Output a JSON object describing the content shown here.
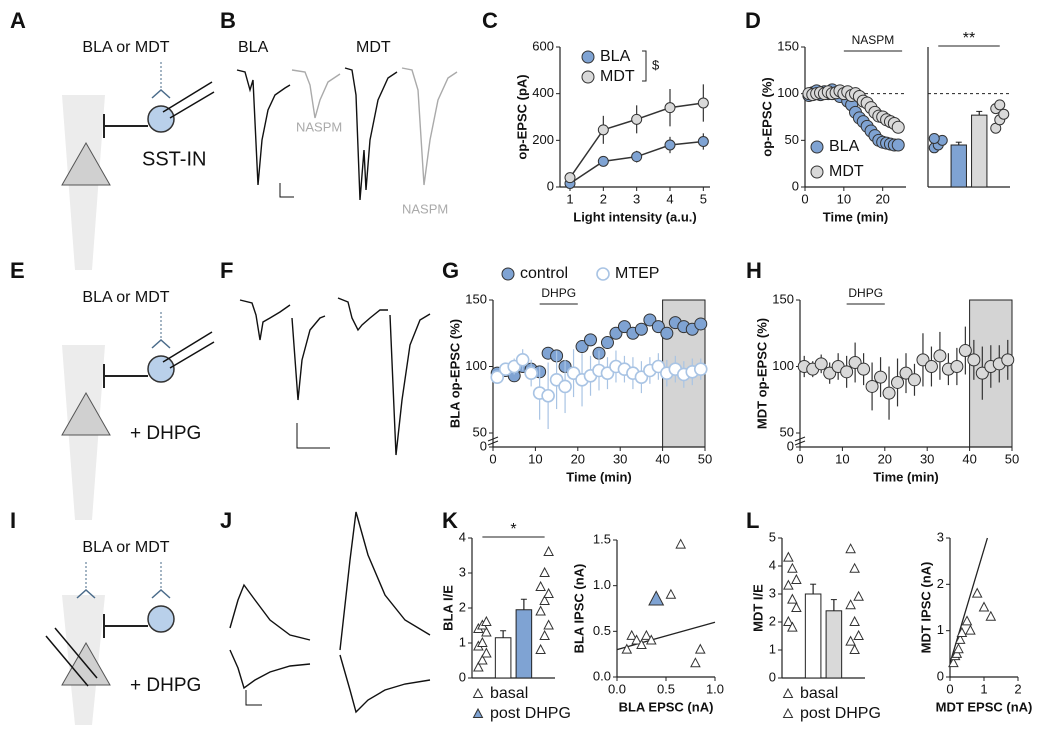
{
  "figure": {
    "panel_labels": [
      "A",
      "B",
      "C",
      "D",
      "E",
      "F",
      "G",
      "H",
      "I",
      "J",
      "K",
      "L"
    ],
    "a": {
      "label": "BLA or MDT",
      "cell": "SST-IN"
    },
    "b": {
      "left": "BLA",
      "right": "MDT",
      "drug_1": "NASPM",
      "drug_2": "NASPM"
    },
    "e": {
      "label": "BLA or MDT",
      "drug": "+ DHPG"
    },
    "i": {
      "label": "BLA or MDT",
      "drug": "+ DHPG"
    }
  },
  "chart_data": [
    {
      "type": "line",
      "xlabel": "Light intensity (a.u.)",
      "ylabel": "op-EPSC (pA)",
      "x": [
        1,
        2,
        3,
        4,
        5
      ],
      "xlim": [
        0.7,
        5.2
      ],
      "xticks": [
        1,
        2,
        3,
        4,
        5
      ],
      "ylim": [
        0,
        600
      ],
      "yticks": [
        0,
        200,
        400,
        600
      ],
      "connect": true,
      "legend": "upper left",
      "annotation": "$",
      "series": [
        {
          "name": "BLA",
          "color": "#7fa3d3",
          "values": [
            15,
            110,
            130,
            180,
            195
          ],
          "errors": [
            8,
            20,
            25,
            35,
            35
          ]
        },
        {
          "name": "MDT",
          "color": "#d9d9d9",
          "values": [
            40,
            245,
            290,
            340,
            360
          ],
          "errors": [
            10,
            60,
            60,
            80,
            80
          ]
        }
      ]
    },
    {
      "type": "line",
      "xlabel": "Time (min)",
      "ylabel": "op-EPSC (%)",
      "x": [
        1,
        2,
        3,
        4,
        5,
        6,
        7,
        8,
        9,
        10,
        11,
        12,
        13,
        14,
        15,
        16,
        17,
        18,
        19,
        20,
        21,
        22,
        23,
        24
      ],
      "xlim": [
        0,
        26
      ],
      "xticks": [
        0,
        10,
        20
      ],
      "ylim": [
        0,
        150
      ],
      "yticks": [
        0,
        50,
        100,
        150
      ],
      "reference_line": 100,
      "drug_span": [
        10,
        25
      ],
      "annotation": "NASPM",
      "legend": "lower left",
      "series": [
        {
          "name": "BLA",
          "color": "#7fa3d3",
          "values": [
            98,
            101,
            103,
            99,
            102,
            100,
            104,
            101,
            97,
            100,
            92,
            88,
            80,
            74,
            70,
            65,
            60,
            55,
            50,
            48,
            47,
            46,
            45,
            45
          ]
        },
        {
          "name": "MDT",
          "color": "#d9d9d9",
          "values": [
            100,
            99,
            100,
            101,
            100,
            102,
            100,
            101,
            103,
            100,
            102,
            98,
            100,
            97,
            92,
            90,
            85,
            80,
            76,
            75,
            72,
            70,
            68,
            64
          ]
        }
      ]
    },
    {
      "type": "bar",
      "ylim": [
        0,
        150
      ],
      "reference_line": 100,
      "annotation": "**",
      "values": [
        45,
        77
      ],
      "errors": [
        3,
        4
      ],
      "colors": [
        "#7fa3d3",
        "#d9d9d9"
      ],
      "points": [
        [
          42,
          45,
          50,
          52
        ],
        [
          63,
          72,
          78,
          84,
          88
        ]
      ]
    },
    {
      "type": "line",
      "xlabel": "Time (min)",
      "ylabel": "BLA op-EPSC (%)",
      "x": [
        1,
        3,
        5,
        7,
        9,
        11,
        13,
        15,
        17,
        19,
        21,
        23,
        25,
        27,
        29,
        31,
        33,
        35,
        37,
        39,
        41,
        43,
        45,
        47,
        49
      ],
      "xlim": [
        0,
        50
      ],
      "xticks": [
        0,
        10,
        20,
        30,
        40,
        50
      ],
      "ylim": [
        0,
        150
      ],
      "yticks": [
        0,
        50,
        100,
        150
      ],
      "y_break": 50,
      "shaded_span": [
        40,
        50
      ],
      "drug_span": [
        11,
        20
      ],
      "annotation": "DHPG",
      "legend": "top",
      "series": [
        {
          "name": "control",
          "color": "#7fa3d3",
          "values": [
            95,
            97,
            93,
            100,
            98,
            96,
            110,
            108,
            100,
            95,
            115,
            120,
            110,
            118,
            125,
            130,
            125,
            128,
            135,
            130,
            125,
            133,
            130,
            128,
            132
          ]
        },
        {
          "name": "MTEP",
          "color": "#a9c4e4",
          "marker": "open",
          "values": [
            92,
            98,
            100,
            105,
            95,
            80,
            78,
            90,
            85,
            95,
            90,
            93,
            97,
            95,
            100,
            98,
            95,
            92,
            97,
            100,
            95,
            98,
            94,
            96,
            98
          ],
          "errors": [
            5,
            5,
            6,
            8,
            10,
            20,
            25,
            22,
            20,
            18,
            20,
            15,
            15,
            12,
            12,
            10,
            12,
            12,
            10,
            10,
            10,
            10,
            10,
            10,
            8
          ]
        }
      ]
    },
    {
      "type": "line",
      "xlabel": "Time (min)",
      "ylabel": "MDT op-EPSC (%)",
      "x": [
        1,
        3,
        5,
        7,
        9,
        11,
        13,
        15,
        17,
        19,
        21,
        23,
        25,
        27,
        29,
        31,
        33,
        35,
        37,
        39,
        41,
        43,
        45,
        47,
        49
      ],
      "xlim": [
        0,
        50
      ],
      "xticks": [
        0,
        10,
        20,
        30,
        40,
        50
      ],
      "ylim": [
        0,
        150
      ],
      "yticks": [
        0,
        50,
        100,
        150
      ],
      "y_break": 50,
      "shaded_span": [
        40,
        50
      ],
      "drug_span": [
        11,
        20
      ],
      "annotation": "DHPG",
      "series": [
        {
          "color": "#d9d9d9",
          "values": [
            100,
            98,
            102,
            95,
            100,
            96,
            103,
            98,
            85,
            92,
            80,
            88,
            95,
            90,
            105,
            100,
            108,
            98,
            100,
            112,
            105,
            95,
            100,
            102,
            105
          ],
          "errors": [
            8,
            6,
            7,
            8,
            10,
            12,
            15,
            12,
            18,
            15,
            20,
            18,
            15,
            12,
            20,
            15,
            18,
            12,
            14,
            18,
            15,
            20,
            16,
            14,
            15
          ]
        }
      ]
    },
    {
      "type": "bar",
      "ylabel": "BLA I/E",
      "ylim": [
        0,
        4
      ],
      "yticks": [
        0,
        1,
        2,
        3,
        4
      ],
      "annotation": "*",
      "legend": "bottom",
      "marker": "triangle",
      "categories": [
        "basal",
        "post DHPG"
      ],
      "values": [
        1.15,
        1.95
      ],
      "errors": [
        0.2,
        0.3
      ],
      "colors": [
        "#ffffff",
        "#7fa3d3"
      ],
      "marker_colors": [
        "#ffffff",
        "#7fa3d3"
      ],
      "points": [
        [
          0.3,
          0.5,
          0.7,
          0.9,
          1.0,
          1.3,
          1.4,
          1.5,
          1.6
        ],
        [
          0.8,
          1.2,
          1.5,
          1.9,
          2.2,
          2.4,
          2.6,
          3.0,
          3.6
        ]
      ]
    },
    {
      "type": "scatter",
      "xlabel": "BLA EPSC (nA)",
      "ylabel": "BLA IPSC (nA)",
      "xlim": [
        0,
        1
      ],
      "xticks": [
        {
          "value": 0,
          "label": "0.0"
        },
        {
          "value": 0.5,
          "label": "0.5"
        },
        {
          "value": 1,
          "label": "1.0"
        }
      ],
      "ylim": [
        0,
        1.5
      ],
      "yticks": [
        {
          "value": 0,
          "label": "0.0"
        },
        {
          "value": 0.5,
          "label": "0.5"
        },
        {
          "value": 1,
          "label": "1.0"
        },
        {
          "value": 1.5,
          "label": "1.5"
        }
      ],
      "series": [
        {
          "color": "#ffffff",
          "marker": "triangle",
          "x": [
            0.1,
            0.15,
            0.2,
            0.25,
            0.3,
            0.35,
            0.55,
            0.65,
            0.8,
            0.85
          ],
          "values": [
            0.3,
            0.45,
            0.4,
            0.35,
            0.45,
            0.4,
            0.9,
            1.45,
            0.15,
            0.3
          ]
        },
        {
          "color": "#7fa3d3",
          "marker": "triangle",
          "x": [
            0.4
          ],
          "values": [
            0.85
          ]
        }
      ],
      "fit": {
        "x": [
          0,
          1
        ],
        "values": [
          0.3,
          0.6
        ]
      }
    },
    {
      "type": "bar",
      "ylabel": "MDT I/E",
      "ylim": [
        0,
        5
      ],
      "yticks": [
        0,
        1,
        2,
        3,
        4,
        5
      ],
      "legend": "bottom",
      "marker": "triangle",
      "categories": [
        "basal",
        "post DHPG"
      ],
      "values": [
        3.0,
        2.4
      ],
      "errors": [
        0.35,
        0.4
      ],
      "colors": [
        "#ffffff",
        "#d9d9d9"
      ],
      "marker_colors": [
        "#ffffff",
        "#ffffff"
      ],
      "points": [
        [
          4.3,
          3.9,
          3.5,
          3.3,
          2.8,
          2.5,
          2.0,
          1.8
        ],
        [
          4.6,
          3.9,
          2.9,
          2.6,
          2.0,
          1.5,
          1.3,
          1.0
        ]
      ]
    },
    {
      "type": "scatter",
      "xlabel": "MDT EPSC (nA)",
      "ylabel": "MDT IPSC (nA)",
      "xlim": [
        0,
        2
      ],
      "xticks": [
        0,
        1,
        2
      ],
      "ylim": [
        0,
        3
      ],
      "yticks": [
        0,
        1,
        2,
        3
      ],
      "series": [
        {
          "color": "#ffffff",
          "marker": "triangle",
          "x": [
            0.1,
            0.15,
            0.2,
            0.25,
            0.3,
            0.35,
            0.5,
            0.6,
            0.8,
            1.0,
            1.2
          ],
          "values": [
            0.3,
            0.45,
            0.5,
            0.6,
            0.8,
            0.95,
            1.2,
            1.0,
            1.8,
            1.5,
            1.3
          ]
        }
      ],
      "fit": {
        "x": [
          0,
          1.1
        ],
        "values": [
          0.3,
          3
        ]
      }
    }
  ]
}
